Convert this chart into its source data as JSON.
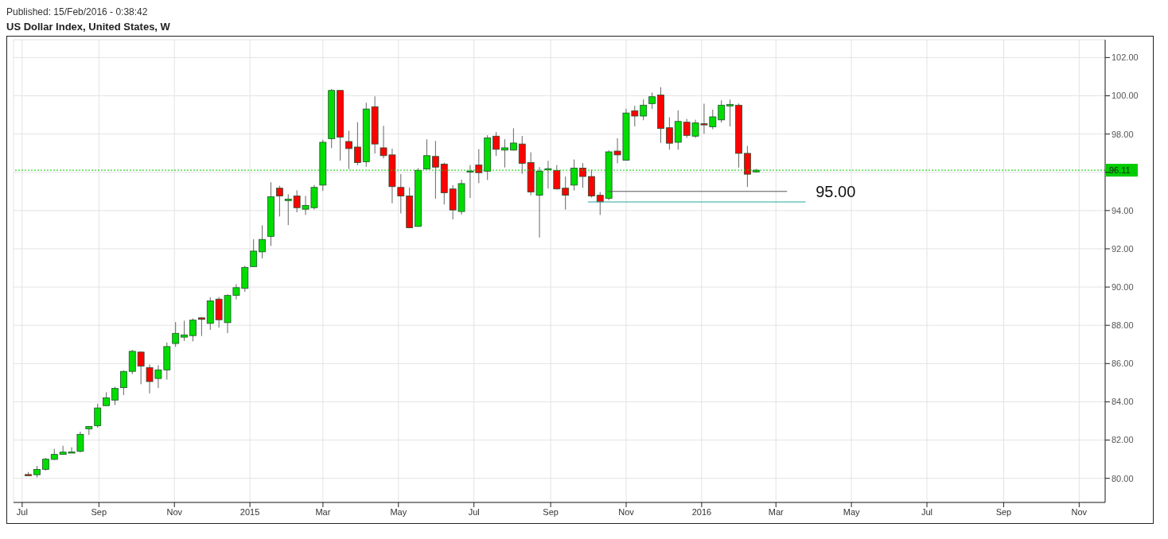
{
  "chart_data": {
    "type": "candlestick",
    "title": "US Dollar Index, United States, W",
    "annotations": [
      "Published: 15/Feb/2016 - 0:38:42",
      {
        "text": "95.00",
        "x": "2016-03-10",
        "y": 95
      }
    ],
    "x": [
      "2014-07-06",
      "2014-07-13",
      "2014-07-20",
      "2014-07-27",
      "2014-08-03",
      "2014-08-10",
      "2014-08-17",
      "2014-08-24",
      "2014-08-31",
      "2014-09-07",
      "2014-09-14",
      "2014-09-21",
      "2014-09-28",
      "2014-10-05",
      "2014-10-12",
      "2014-10-19",
      "2014-10-26",
      "2014-11-02",
      "2014-11-09",
      "2014-11-16",
      "2014-11-23",
      "2014-11-30",
      "2014-12-07",
      "2014-12-14",
      "2014-12-21",
      "2014-12-28",
      "2015-01-04",
      "2015-01-11",
      "2015-01-18",
      "2015-01-25",
      "2015-02-01",
      "2015-02-08",
      "2015-02-15",
      "2015-02-22",
      "2015-03-01",
      "2015-03-08",
      "2015-03-15",
      "2015-03-22",
      "2015-03-29",
      "2015-04-05",
      "2015-04-12",
      "2015-04-19",
      "2015-04-26",
      "2015-05-03",
      "2015-05-10",
      "2015-05-17",
      "2015-05-24",
      "2015-05-31",
      "2015-06-07",
      "2015-06-14",
      "2015-06-21",
      "2015-06-28",
      "2015-07-05",
      "2015-07-12",
      "2015-07-19",
      "2015-07-26",
      "2015-08-02",
      "2015-08-09",
      "2015-08-16",
      "2015-08-23",
      "2015-08-30",
      "2015-09-06",
      "2015-09-13",
      "2015-09-20",
      "2015-09-27",
      "2015-10-04",
      "2015-10-11",
      "2015-10-18",
      "2015-10-25",
      "2015-11-01",
      "2015-11-08",
      "2015-11-15",
      "2015-11-22",
      "2015-11-29",
      "2015-12-06",
      "2015-12-13",
      "2015-12-20",
      "2015-12-27",
      "2016-01-03",
      "2016-01-10",
      "2016-01-17",
      "2016-01-24",
      "2016-01-31",
      "2016-02-07",
      "2016-02-14"
    ],
    "ohlc": [
      [
        80.2,
        80.33,
        80.15,
        80.17
      ],
      [
        80.19,
        80.65,
        80.05,
        80.47
      ],
      [
        80.47,
        81.07,
        80.41,
        81.0
      ],
      [
        80.99,
        81.54,
        80.95,
        81.25
      ],
      [
        81.25,
        81.7,
        81.23,
        81.37
      ],
      [
        81.36,
        81.62,
        81.34,
        81.38
      ],
      [
        81.41,
        82.44,
        81.35,
        82.3
      ],
      [
        82.59,
        82.74,
        82.27,
        82.71
      ],
      [
        82.75,
        83.9,
        82.65,
        83.68
      ],
      [
        83.8,
        84.5,
        83.78,
        84.21
      ],
      [
        84.09,
        84.79,
        83.83,
        84.7
      ],
      [
        84.74,
        85.64,
        84.35,
        85.59
      ],
      [
        85.59,
        86.72,
        85.45,
        86.64
      ],
      [
        86.6,
        86.64,
        84.92,
        85.87
      ],
      [
        85.79,
        85.95,
        84.44,
        85.06
      ],
      [
        85.22,
        85.91,
        84.72,
        85.67
      ],
      [
        85.67,
        87.1,
        85.16,
        86.89
      ],
      [
        87.05,
        88.17,
        86.87,
        87.58
      ],
      [
        87.38,
        88.24,
        87.18,
        87.5
      ],
      [
        87.46,
        88.36,
        87.16,
        88.27
      ],
      [
        88.39,
        88.42,
        87.44,
        88.31
      ],
      [
        88.1,
        89.46,
        87.76,
        89.28
      ],
      [
        89.37,
        89.48,
        87.88,
        88.29
      ],
      [
        88.14,
        89.62,
        87.59,
        89.56
      ],
      [
        89.56,
        90.15,
        89.35,
        89.97
      ],
      [
        89.93,
        91.11,
        89.75,
        91.03
      ],
      [
        91.07,
        92.5,
        91.05,
        91.88
      ],
      [
        91.84,
        93.23,
        91.5,
        92.49
      ],
      [
        92.65,
        95.48,
        92.15,
        94.72
      ],
      [
        95.17,
        95.3,
        93.69,
        94.76
      ],
      [
        94.52,
        94.85,
        93.24,
        94.6
      ],
      [
        94.76,
        95.06,
        93.91,
        94.15
      ],
      [
        94.07,
        94.77,
        93.77,
        94.27
      ],
      [
        94.15,
        95.34,
        94.05,
        95.21
      ],
      [
        95.33,
        97.7,
        95.03,
        97.57
      ],
      [
        97.76,
        100.35,
        97.26,
        100.28
      ],
      [
        100.28,
        100.3,
        96.61,
        97.84
      ],
      [
        97.61,
        98.17,
        96.17,
        97.24
      ],
      [
        97.32,
        98.62,
        96.37,
        96.51
      ],
      [
        96.55,
        99.64,
        96.29,
        99.31
      ],
      [
        99.43,
        99.97,
        96.98,
        97.48
      ],
      [
        97.28,
        98.43,
        96.73,
        96.87
      ],
      [
        96.91,
        97.24,
        94.38,
        95.25
      ],
      [
        95.21,
        95.91,
        93.85,
        94.76
      ],
      [
        94.76,
        95.21,
        93.08,
        93.1
      ],
      [
        93.17,
        96.22,
        93.15,
        96.1
      ],
      [
        96.18,
        97.72,
        96.16,
        96.87
      ],
      [
        96.83,
        97.64,
        94.62,
        96.27
      ],
      [
        96.43,
        96.51,
        94.32,
        94.93
      ],
      [
        95.13,
        95.33,
        93.54,
        94.03
      ],
      [
        93.95,
        95.62,
        93.79,
        95.41
      ],
      [
        96.05,
        96.38,
        94.66,
        96.07
      ],
      [
        96.38,
        97.21,
        95.43,
        95.98
      ],
      [
        96.06,
        97.94,
        95.6,
        97.8
      ],
      [
        97.89,
        98.1,
        96.86,
        97.2
      ],
      [
        97.16,
        97.73,
        96.25,
        97.28
      ],
      [
        97.16,
        98.3,
        97.14,
        97.53
      ],
      [
        97.48,
        97.9,
        95.92,
        96.47
      ],
      [
        96.51,
        97.05,
        94.8,
        94.97
      ],
      [
        94.8,
        96.27,
        92.59,
        96.06
      ],
      [
        96.17,
        96.6,
        95.15,
        96.19
      ],
      [
        96.1,
        96.38,
        95.09,
        95.13
      ],
      [
        95.17,
        95.78,
        94.05,
        94.8
      ],
      [
        95.33,
        96.67,
        95.05,
        96.22
      ],
      [
        96.22,
        96.48,
        95.19,
        95.78
      ],
      [
        95.78,
        96.14,
        94.68,
        94.76
      ],
      [
        94.8,
        94.97,
        93.77,
        94.46
      ],
      [
        94.64,
        97.15,
        94.54,
        97.07
      ],
      [
        97.11,
        97.78,
        96.47,
        96.91
      ],
      [
        96.63,
        99.32,
        96.61,
        99.1
      ],
      [
        99.22,
        99.48,
        98.4,
        98.94
      ],
      [
        98.94,
        99.81,
        98.72,
        99.51
      ],
      [
        99.59,
        100.17,
        99.31,
        99.95
      ],
      [
        100.04,
        100.45,
        97.54,
        98.29
      ],
      [
        98.33,
        98.87,
        97.18,
        97.52
      ],
      [
        97.57,
        99.24,
        97.18,
        98.66
      ],
      [
        98.62,
        98.79,
        97.8,
        97.93
      ],
      [
        97.89,
        98.75,
        97.8,
        98.58
      ],
      [
        98.54,
        99.59,
        98.02,
        98.5
      ],
      [
        98.38,
        99.28,
        98.25,
        98.9
      ],
      [
        98.74,
        99.76,
        98.6,
        99.51
      ],
      [
        99.47,
        99.8,
        98.4,
        99.55
      ],
      [
        99.51,
        99.6,
        96.25,
        96.99
      ],
      [
        96.99,
        97.38,
        95.23,
        95.9
      ],
      [
        96.02,
        96.18,
        95.98,
        96.11
      ]
    ],
    "colors": [
      "#ff0000",
      "#00dd00",
      "#00dd00",
      "#00dd00",
      "#00dd00",
      "#00dd00",
      "#00dd00",
      "#00dd00",
      "#00dd00",
      "#00dd00",
      "#00dd00",
      "#00dd00",
      "#00dd00",
      "#ff0000",
      "#ff0000",
      "#00dd00",
      "#00dd00",
      "#00dd00",
      "#00dd00",
      "#00dd00",
      "#ff0000",
      "#00dd00",
      "#ff0000",
      "#00dd00",
      "#00dd00",
      "#00dd00",
      "#00dd00",
      "#00dd00",
      "#00dd00",
      "#ff0000",
      "#00dd00",
      "#ff0000",
      "#00dd00",
      "#00dd00",
      "#00dd00",
      "#00dd00",
      "#ff0000",
      "#ff0000",
      "#ff0000",
      "#00dd00",
      "#ff0000",
      "#ff0000",
      "#ff0000",
      "#ff0000",
      "#ff0000",
      "#00dd00",
      "#00dd00",
      "#ff0000",
      "#ff0000",
      "#ff0000",
      "#00dd00",
      "#00dd00",
      "#ff0000",
      "#00dd00",
      "#ff0000",
      "#00dd00",
      "#00dd00",
      "#ff0000",
      "#ff0000",
      "#00dd00",
      "#00dd00",
      "#ff0000",
      "#ff0000",
      "#00dd00",
      "#ff0000",
      "#ff0000",
      "#ff0000",
      "#00dd00",
      "#ff0000",
      "#00dd00",
      "#ff0000",
      "#00dd00",
      "#00dd00",
      "#ff0000",
      "#ff0000",
      "#00dd00",
      "#ff0000",
      "#00dd00",
      "#ff0000",
      "#00dd00",
      "#00dd00",
      "#00dd00",
      "#ff0000",
      "#ff0000",
      "#00dd00"
    ],
    "series": [
      {
        "type": "line",
        "color": "#555555",
        "x": [
          "2015-10-17",
          "2016-03-10"
        ],
        "values": [
          95,
          95
        ]
      },
      {
        "type": "line",
        "color": "#26a69a",
        "x": [
          "2015-10-01",
          "2016-03-25"
        ],
        "values": [
          94.45,
          94.45
        ]
      }
    ],
    "ref_lines": [
      {
        "axis": "y",
        "value": 96.11,
        "label": "96.11",
        "color": "#00cc00",
        "line_style": "dotted"
      }
    ],
    "xlim": [
      "2014-06-24",
      "2016-11-22"
    ],
    "xticks": [
      {
        "value": "2014-07-01",
        "label": "Jul"
      },
      {
        "value": "2014-09-01",
        "label": "Sep"
      },
      {
        "value": "2014-11-01",
        "label": "Nov"
      },
      {
        "value": "2015-01-01",
        "label": "2015"
      },
      {
        "value": "2015-03-01",
        "label": "Mar"
      },
      {
        "value": "2015-05-01",
        "label": "May"
      },
      {
        "value": "2015-07-01",
        "label": "Jul"
      },
      {
        "value": "2015-09-01",
        "label": "Sep"
      },
      {
        "value": "2015-11-01",
        "label": "Nov"
      },
      {
        "value": "2016-01-01",
        "label": "2016"
      },
      {
        "value": "2016-03-01",
        "label": "Mar"
      },
      {
        "value": "2016-05-01",
        "label": "May"
      },
      {
        "value": "2016-07-01",
        "label": "Jul"
      },
      {
        "value": "2016-09-01",
        "label": "Sep"
      },
      {
        "value": "2016-11-01",
        "label": "Nov"
      }
    ],
    "ylim": [
      78.74,
      102.93
    ],
    "yticks": [
      {
        "value": 80,
        "label": "80.00"
      },
      {
        "value": 82,
        "label": "82.00"
      },
      {
        "value": 84,
        "label": "84.00"
      },
      {
        "value": 86,
        "label": "86.00"
      },
      {
        "value": 88,
        "label": "88.00"
      },
      {
        "value": 90,
        "label": "90.00"
      },
      {
        "value": 92,
        "label": "92.00"
      },
      {
        "value": 94,
        "label": "94.00"
      },
      {
        "value": 96,
        "label": null
      },
      {
        "value": 98,
        "label": "98.00"
      },
      {
        "value": 100,
        "label": "100.00"
      },
      {
        "value": 102,
        "label": "102.00"
      }
    ],
    "grid": true,
    "legend": false
  }
}
